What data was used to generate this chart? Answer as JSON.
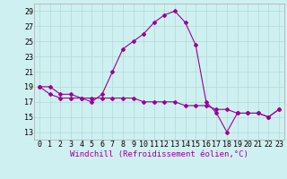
{
  "xlabel": "Windchill (Refroidissement éolien,°C)",
  "ylabel": "",
  "bg_color": "#cff0f0",
  "grid_color": "#b0d8d8",
  "line_color": "#990099",
  "hours": [
    0,
    1,
    2,
    3,
    4,
    5,
    6,
    7,
    8,
    9,
    10,
    11,
    12,
    13,
    14,
    15,
    16,
    17,
    18,
    19,
    20,
    21,
    22,
    23
  ],
  "line1": [
    19,
    19,
    18,
    18,
    17.5,
    17,
    18,
    21,
    24,
    25,
    26,
    27.5,
    28.5,
    29,
    27.5,
    24.5,
    17,
    15.5,
    13,
    15.5,
    15.5,
    15.5,
    15,
    16
  ],
  "line2": [
    19,
    18,
    17.5,
    17.5,
    17.5,
    17.5,
    17.5,
    17.5,
    17.5,
    17.5,
    17,
    17,
    17,
    17,
    16.5,
    16.5,
    16.5,
    16,
    16,
    15.5,
    15.5,
    15.5,
    15,
    16
  ],
  "ylim": [
    12,
    30
  ],
  "yticks": [
    13,
    15,
    17,
    19,
    21,
    23,
    25,
    27,
    29
  ],
  "xlim": [
    -0.5,
    23.5
  ],
  "marker": "D",
  "markersize": 2.0,
  "linewidth": 0.8,
  "xlabel_fontsize": 6.5,
  "tick_fontsize": 6.0
}
